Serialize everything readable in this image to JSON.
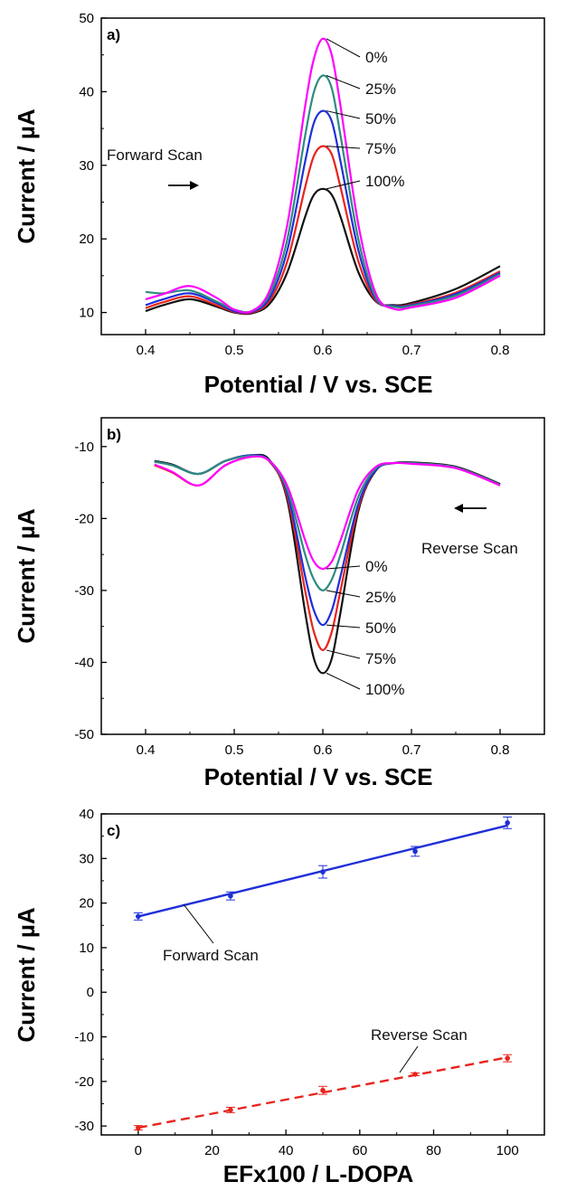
{
  "chart_data": [
    {
      "panel": "a)",
      "type": "line",
      "xlabel": "Potential / V vs. SCE",
      "ylabel": "Current / µA",
      "xlim": [
        0.35,
        0.85
      ],
      "ylim": [
        7,
        50
      ],
      "xticks": [
        0.4,
        0.5,
        0.6,
        0.7,
        0.8
      ],
      "xtick_labels": [
        "0.4",
        "0.5",
        "0.6",
        "0.7",
        "0.8"
      ],
      "yticks": [
        10,
        20,
        30,
        40,
        50
      ],
      "ytick_labels": [
        "10",
        "20",
        "30",
        "40",
        "50"
      ],
      "grid": false,
      "legend": "none",
      "annotations": [
        {
          "text": "Forward Scan",
          "arrow": "right"
        }
      ],
      "series": [
        {
          "name": "0%",
          "color": "#ff00ff",
          "x": [
            0.4,
            0.42,
            0.45,
            0.48,
            0.5,
            0.52,
            0.54,
            0.56,
            0.58,
            0.59,
            0.6,
            0.61,
            0.62,
            0.64,
            0.66,
            0.68,
            0.7,
            0.75,
            0.8
          ],
          "y": [
            11.8,
            12.5,
            13.6,
            12.0,
            10.4,
            10.2,
            13.0,
            22.0,
            38.0,
            44.5,
            47.2,
            45.0,
            38.0,
            22.0,
            12.5,
            10.5,
            10.7,
            12.0,
            15.0
          ]
        },
        {
          "name": "25%",
          "color": "#2e8b7f",
          "x": [
            0.4,
            0.42,
            0.45,
            0.48,
            0.5,
            0.52,
            0.54,
            0.56,
            0.58,
            0.59,
            0.6,
            0.61,
            0.62,
            0.64,
            0.66,
            0.68,
            0.7,
            0.75,
            0.8
          ],
          "y": [
            12.8,
            12.6,
            13.0,
            11.5,
            10.4,
            10.2,
            12.5,
            20.0,
            34.0,
            40.0,
            42.2,
            40.5,
            34.0,
            20.0,
            12.0,
            10.8,
            10.9,
            12.3,
            15.2
          ]
        },
        {
          "name": "50%",
          "color": "#1f2fd8",
          "x": [
            0.4,
            0.42,
            0.45,
            0.48,
            0.5,
            0.52,
            0.54,
            0.56,
            0.58,
            0.59,
            0.6,
            0.61,
            0.62,
            0.64,
            0.66,
            0.68,
            0.7,
            0.75,
            0.8
          ],
          "y": [
            11.0,
            11.8,
            12.6,
            11.3,
            10.2,
            10.1,
            12.0,
            18.5,
            30.5,
            35.8,
            37.4,
            36.0,
            30.5,
            18.5,
            11.8,
            10.9,
            11.0,
            12.5,
            15.4
          ]
        },
        {
          "name": "75%",
          "color": "#e8231c",
          "x": [
            0.4,
            0.42,
            0.45,
            0.48,
            0.5,
            0.52,
            0.54,
            0.56,
            0.58,
            0.59,
            0.6,
            0.61,
            0.62,
            0.64,
            0.66,
            0.68,
            0.7,
            0.75,
            0.8
          ],
          "y": [
            10.6,
            11.4,
            12.2,
            11.0,
            10.1,
            10.0,
            11.6,
            17.0,
            27.0,
            31.3,
            32.6,
            31.5,
            27.0,
            17.0,
            11.6,
            10.9,
            11.1,
            12.7,
            15.6
          ]
        },
        {
          "name": "100%",
          "color": "#111111",
          "x": [
            0.4,
            0.42,
            0.45,
            0.48,
            0.5,
            0.52,
            0.54,
            0.56,
            0.58,
            0.59,
            0.6,
            0.61,
            0.62,
            0.64,
            0.66,
            0.68,
            0.7,
            0.75,
            0.8
          ],
          "y": [
            10.2,
            11.0,
            11.8,
            10.8,
            10.0,
            9.9,
            11.2,
            15.5,
            23.0,
            26.0,
            26.8,
            26.0,
            23.0,
            15.5,
            11.5,
            11.0,
            11.3,
            13.2,
            16.3
          ]
        }
      ]
    },
    {
      "panel": "b)",
      "type": "line",
      "xlabel": "Potential / V vs. SCE",
      "ylabel": "Current / µA",
      "xlim": [
        0.35,
        0.85
      ],
      "ylim": [
        -50,
        -6
      ],
      "xticks": [
        0.4,
        0.5,
        0.6,
        0.7,
        0.8
      ],
      "xtick_labels": [
        "0.4",
        "0.5",
        "0.6",
        "0.7",
        "0.8"
      ],
      "yticks": [
        -50,
        -40,
        -30,
        -20,
        -10
      ],
      "ytick_labels": [
        "-50",
        "-40",
        "-30",
        "-20",
        "-10"
      ],
      "grid": false,
      "legend": "none",
      "annotations": [
        {
          "text": "Reverse Scan",
          "arrow": "left"
        }
      ],
      "series": [
        {
          "name": "0%",
          "color": "#ff00ff",
          "x": [
            0.41,
            0.43,
            0.46,
            0.49,
            0.52,
            0.54,
            0.56,
            0.58,
            0.59,
            0.6,
            0.61,
            0.62,
            0.64,
            0.66,
            0.68,
            0.7,
            0.75,
            0.8
          ],
          "y": [
            -12.5,
            -13.5,
            -15.4,
            -12.6,
            -11.4,
            -12.0,
            -15.5,
            -23.0,
            -26.0,
            -27.0,
            -26.0,
            -23.0,
            -16.0,
            -12.8,
            -12.3,
            -12.4,
            -13.0,
            -15.4
          ]
        },
        {
          "name": "25%",
          "color": "#2e8b7f",
          "x": [
            0.41,
            0.43,
            0.46,
            0.49,
            0.52,
            0.54,
            0.56,
            0.58,
            0.59,
            0.6,
            0.61,
            0.62,
            0.64,
            0.66,
            0.68,
            0.7,
            0.75,
            0.8
          ],
          "y": [
            -12.1,
            -12.6,
            -13.8,
            -12.0,
            -11.3,
            -12.0,
            -16.0,
            -25.0,
            -28.5,
            -30.0,
            -28.5,
            -25.0,
            -17.0,
            -13.0,
            -12.3,
            -12.3,
            -12.9,
            -15.3
          ]
        },
        {
          "name": "50%",
          "color": "#1f2fd8",
          "x": [
            0.41,
            0.43,
            0.46,
            0.49,
            0.52,
            0.54,
            0.56,
            0.58,
            0.59,
            0.6,
            0.61,
            0.62,
            0.64,
            0.66,
            0.68,
            0.7,
            0.75,
            0.8
          ],
          "y": [
            -12.1,
            -12.6,
            -13.8,
            -12.0,
            -11.2,
            -12.0,
            -16.5,
            -28.0,
            -32.8,
            -34.8,
            -32.8,
            -28.0,
            -18.0,
            -13.2,
            -12.3,
            -12.3,
            -12.9,
            -15.3
          ]
        },
        {
          "name": "75%",
          "color": "#e8231c",
          "x": [
            0.41,
            0.43,
            0.46,
            0.49,
            0.52,
            0.54,
            0.56,
            0.58,
            0.59,
            0.6,
            0.61,
            0.62,
            0.64,
            0.66,
            0.68,
            0.7,
            0.75,
            0.8
          ],
          "y": [
            -12.6,
            -13.6,
            -15.4,
            -12.6,
            -11.4,
            -12.1,
            -17.0,
            -30.0,
            -35.8,
            -38.3,
            -35.8,
            -30.0,
            -18.5,
            -13.2,
            -12.3,
            -12.3,
            -12.9,
            -15.3
          ]
        },
        {
          "name": "100%",
          "color": "#111111",
          "x": [
            0.41,
            0.43,
            0.46,
            0.49,
            0.52,
            0.54,
            0.56,
            0.58,
            0.59,
            0.6,
            0.61,
            0.62,
            0.64,
            0.66,
            0.68,
            0.7,
            0.75,
            0.8
          ],
          "y": [
            -12.0,
            -12.5,
            -13.8,
            -12.0,
            -11.2,
            -11.9,
            -17.5,
            -33.0,
            -39.5,
            -41.5,
            -39.5,
            -33.0,
            -19.0,
            -13.3,
            -12.3,
            -12.2,
            -12.8,
            -15.2
          ]
        }
      ]
    },
    {
      "panel": "c)",
      "type": "scatter",
      "xlabel": "EFx100 / L-DOPA",
      "ylabel": "Current / µA",
      "xlim": [
        -10,
        110
      ],
      "ylim": [
        -32,
        40
      ],
      "xticks": [
        0,
        20,
        40,
        60,
        80,
        100
      ],
      "xtick_labels": [
        "0",
        "20",
        "40",
        "60",
        "80",
        "100"
      ],
      "yticks": [
        -30,
        -20,
        -10,
        0,
        10,
        20,
        30,
        40
      ],
      "ytick_labels": [
        "-30",
        "-20",
        "-10",
        "0",
        "10",
        "20",
        "30",
        "40"
      ],
      "grid": false,
      "legend": "none",
      "series": [
        {
          "name": "Forward Scan",
          "color": "#1f2fd8",
          "line": "solid",
          "x": [
            0,
            25,
            50,
            75,
            100
          ],
          "y": [
            17.0,
            21.6,
            27.0,
            31.6,
            38.0
          ],
          "err": [
            0.8,
            0.9,
            1.4,
            1.1,
            1.3
          ],
          "fit": [
            17.0,
            37.4
          ]
        },
        {
          "name": "Reverse Scan",
          "color": "#e8231c",
          "line": "dashed",
          "x": [
            0,
            25,
            50,
            75,
            100
          ],
          "y": [
            -30.4,
            -26.4,
            -22.0,
            -18.4,
            -14.8
          ],
          "err": [
            0.5,
            0.6,
            0.9,
            0.3,
            0.8
          ],
          "fit": [
            -30.4,
            -14.6
          ]
        }
      ]
    }
  ]
}
